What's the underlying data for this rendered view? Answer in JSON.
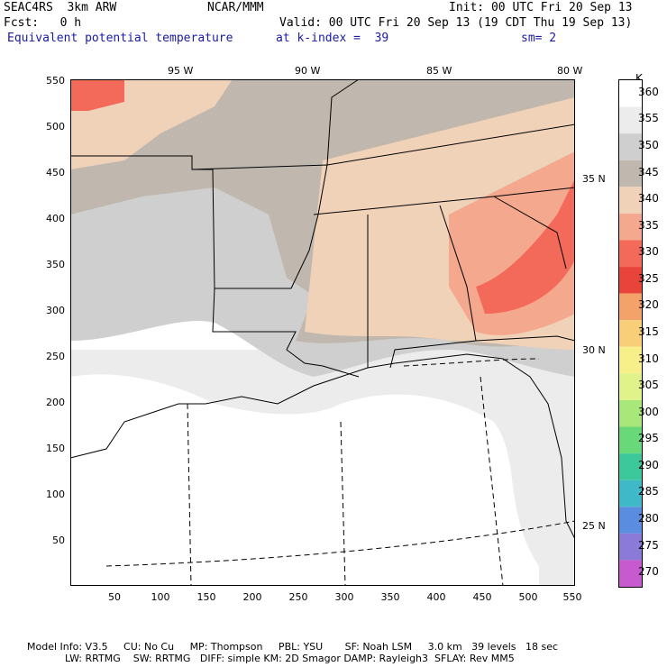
{
  "header": {
    "line1_left": "SEAC4RS  3km ARW",
    "line1_mid": "NCAR/MMM",
    "line1_right": "Init: 00 UTC Fri 20 Sep 13",
    "line2_left": "Fcst:   0 h",
    "line2_right": "Valid: 00 UTC Fri 20 Sep 13 (19 CDT Thu 19 Sep 13)",
    "line3_field": "Equivalent potential temperature",
    "line3_level": "at k-index =  39",
    "line3_smooth": "sm= 2"
  },
  "axes": {
    "y_ticks": [
      "550",
      "500",
      "450",
      "400",
      "350",
      "300",
      "250",
      "200",
      "150",
      "100",
      "50"
    ],
    "x_ticks": [
      "50",
      "100",
      "150",
      "200",
      "250",
      "300",
      "350",
      "400",
      "450",
      "500",
      "550"
    ],
    "lon_labels": [
      "95 W",
      "90 W",
      "85 W",
      "80 W"
    ],
    "lat_labels": [
      "35 N",
      "30 N",
      "25 N"
    ]
  },
  "legend": {
    "unit": "K",
    "levels": [
      "360",
      "355",
      "350",
      "345",
      "340",
      "335",
      "330",
      "325",
      "320",
      "315",
      "310",
      "305",
      "300",
      "295",
      "290",
      "285",
      "280",
      "275",
      "270"
    ],
    "colors": [
      "#ffffff",
      "#ececec",
      "#cfcfcf",
      "#c0b8ae",
      "#f0d2b8",
      "#f4a88e",
      "#f46a5a",
      "#e8443a",
      "#f3a36a",
      "#f8cf78",
      "#f7f08a",
      "#e0f28a",
      "#a8e87a",
      "#68d878",
      "#3cc89a",
      "#3fb8c8",
      "#5a8ce0",
      "#8c7ad8",
      "#c85ad0"
    ]
  },
  "footer": {
    "line1": "Model Info: V3.5     CU: No Cu     MP: Thompson     PBL: YSU       SF: Noah LSM     3.0 km   39 levels   18 sec",
    "line2": "            LW: RRTMG    SW: RRTMG   DIFF: simple KM: 2D Smagor DAMP: Rayleigh3  SFLAY: Rev MM5"
  }
}
